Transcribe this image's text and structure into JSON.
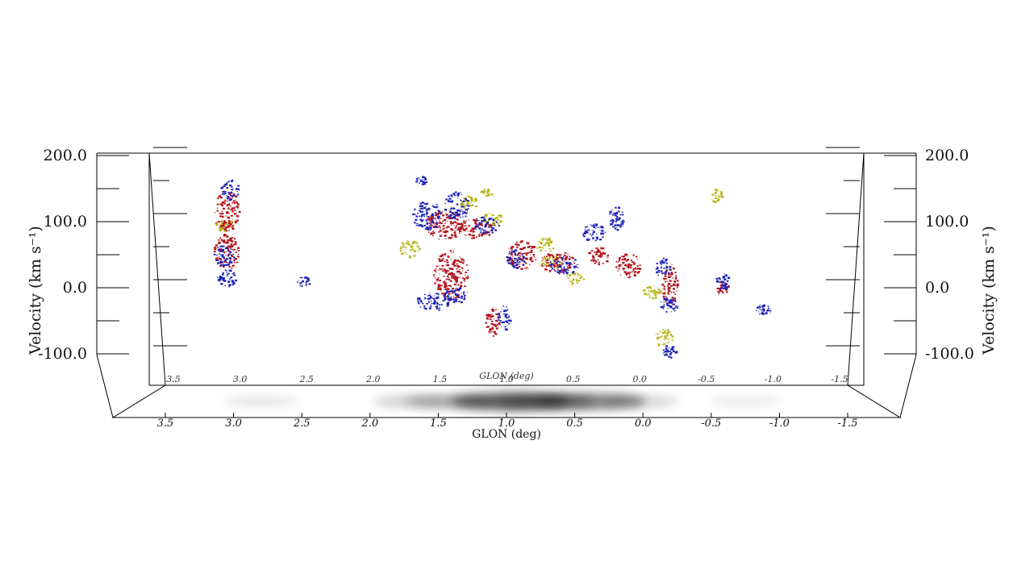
{
  "chart_data": {
    "type": "scatter",
    "title": "",
    "ylabel": "Velocity (km s⁻¹)",
    "xlabel_front": "GLON (deg)",
    "xlabel_back": "GLON (deg)",
    "ylim": [
      -150,
      200
    ],
    "xlim": [
      2.0,
      -2.0
    ],
    "velocity_ticks": [
      "200.0",
      "100.0",
      "0.0",
      "-100.0"
    ],
    "velocity_tick_values": [
      200,
      100,
      0,
      -100
    ],
    "glon_ticks_front": [
      "3.5",
      "3.0",
      "2.5",
      "2.0",
      "1.5",
      "1.0",
      "0.5",
      "0.0",
      "-0.5",
      "-1.0",
      "-1.5"
    ],
    "glon_ticks_back": [
      "3.5",
      "3.0",
      "2.5",
      "2.0",
      "1.5",
      "1.0",
      "0.5",
      "0.0",
      "-0.5",
      "-1.0",
      "-1.5"
    ],
    "colors": {
      "red": "#b3121a",
      "blue": "#1b23b8",
      "yellow": "#b8b417",
      "projection": "#222222"
    },
    "clumps": [
      {
        "glon": 3.2,
        "v": 118,
        "dglon": 0.08,
        "dv": 28,
        "series": "red"
      },
      {
        "glon": 3.2,
        "v": 55,
        "dglon": 0.08,
        "dv": 24,
        "series": "red"
      },
      {
        "glon": 3.17,
        "v": 150,
        "dglon": 0.05,
        "dv": 12,
        "series": "blue"
      },
      {
        "glon": 3.22,
        "v": 50,
        "dglon": 0.06,
        "dv": 12,
        "series": "blue"
      },
      {
        "glon": 3.2,
        "v": 15,
        "dglon": 0.05,
        "dv": 10,
        "series": "blue"
      },
      {
        "glon": 3.22,
        "v": 95,
        "dglon": 0.06,
        "dv": 6,
        "series": "yellow"
      },
      {
        "glon": 2.55,
        "v": 10,
        "dglon": 0.03,
        "dv": 4,
        "series": "blue"
      },
      {
        "glon": 1.5,
        "v": 110,
        "dglon": 0.1,
        "dv": 18,
        "series": "blue"
      },
      {
        "glon": 1.25,
        "v": 125,
        "dglon": 0.08,
        "dv": 18,
        "series": "blue"
      },
      {
        "glon": 1.35,
        "v": 95,
        "dglon": 0.15,
        "dv": 18,
        "series": "red"
      },
      {
        "glon": 1.1,
        "v": 90,
        "dglon": 0.12,
        "dv": 12,
        "series": "red"
      },
      {
        "glon": 1.0,
        "v": 95,
        "dglon": 0.08,
        "dv": 10,
        "series": "blue"
      },
      {
        "glon": 0.95,
        "v": 105,
        "dglon": 0.06,
        "dv": 6,
        "series": "yellow"
      },
      {
        "glon": 1.15,
        "v": 130,
        "dglon": 0.05,
        "dv": 6,
        "series": "yellow"
      },
      {
        "glon": 1.65,
        "v": 60,
        "dglon": 0.06,
        "dv": 10,
        "series": "yellow"
      },
      {
        "glon": 1.3,
        "v": 20,
        "dglon": 0.12,
        "dv": 35,
        "series": "red"
      },
      {
        "glon": 1.45,
        "v": -20,
        "dglon": 0.12,
        "dv": 10,
        "series": "blue"
      },
      {
        "glon": 1.25,
        "v": -10,
        "dglon": 0.08,
        "dv": 8,
        "series": "blue"
      },
      {
        "glon": 0.7,
        "v": 50,
        "dglon": 0.1,
        "dv": 18,
        "series": "red"
      },
      {
        "glon": 0.75,
        "v": 45,
        "dglon": 0.06,
        "dv": 10,
        "series": "blue"
      },
      {
        "glon": 0.4,
        "v": 40,
        "dglon": 0.12,
        "dv": 12,
        "series": "red"
      },
      {
        "glon": 0.35,
        "v": 35,
        "dglon": 0.1,
        "dv": 10,
        "series": "blue"
      },
      {
        "glon": 0.1,
        "v": 85,
        "dglon": 0.08,
        "dv": 10,
        "series": "blue"
      },
      {
        "glon": 0.05,
        "v": 50,
        "dglon": 0.06,
        "dv": 10,
        "series": "red"
      },
      {
        "glon": -0.1,
        "v": 105,
        "dglon": 0.04,
        "dv": 16,
        "series": "blue"
      },
      {
        "glon": -0.2,
        "v": 35,
        "dglon": 0.08,
        "dv": 15,
        "series": "red"
      },
      {
        "glon": 0.25,
        "v": 15,
        "dglon": 0.05,
        "dv": 5,
        "series": "yellow"
      },
      {
        "glon": 0.45,
        "v": 40,
        "dglon": 0.06,
        "dv": 6,
        "series": "yellow"
      },
      {
        "glon": -0.55,
        "v": 5,
        "dglon": 0.04,
        "dv": 30,
        "series": "red"
      },
      {
        "glon": -0.55,
        "v": -25,
        "dglon": 0.05,
        "dv": 8,
        "series": "blue"
      },
      {
        "glon": -0.5,
        "v": 30,
        "dglon": 0.04,
        "dv": 12,
        "series": "blue"
      },
      {
        "glon": -0.4,
        "v": -5,
        "dglon": 0.05,
        "dv": 6,
        "series": "yellow"
      },
      {
        "glon": -0.5,
        "v": -75,
        "dglon": 0.05,
        "dv": 10,
        "series": "yellow"
      },
      {
        "glon": -0.55,
        "v": -95,
        "dglon": 0.03,
        "dv": 6,
        "series": "blue"
      },
      {
        "glon": -0.95,
        "v": 140,
        "dglon": 0.02,
        "dv": 8,
        "series": "yellow"
      },
      {
        "glon": -1.0,
        "v": 10,
        "dglon": 0.03,
        "dv": 10,
        "series": "blue"
      },
      {
        "glon": -1.0,
        "v": 0,
        "dglon": 0.02,
        "dv": 8,
        "series": "red"
      },
      {
        "glon": -1.35,
        "v": -33,
        "dglon": 0.04,
        "dv": 5,
        "series": "blue"
      },
      {
        "glon": 1.0,
        "v": 145,
        "dglon": 0.02,
        "dv": 3,
        "series": "yellow"
      },
      {
        "glon": 1.55,
        "v": 163,
        "dglon": 0.02,
        "dv": 3,
        "series": "blue"
      },
      {
        "glon": 0.85,
        "v": -45,
        "dglon": 0.03,
        "dv": 15,
        "series": "blue"
      },
      {
        "glon": 0.95,
        "v": -50,
        "dglon": 0.03,
        "dv": 20,
        "series": "red"
      },
      {
        "glon": 0.5,
        "v": 65,
        "dglon": 0.05,
        "dv": 8,
        "series": "yellow"
      }
    ],
    "projection": [
      {
        "glon": 0.8,
        "intensity": 0.95
      },
      {
        "glon": 0.5,
        "intensity": 0.6
      },
      {
        "glon": 0.1,
        "intensity": 0.75
      },
      {
        "glon": 1.3,
        "intensity": 0.4
      },
      {
        "glon": 1.6,
        "intensity": 0.3
      },
      {
        "glon": -0.3,
        "intensity": 0.25
      },
      {
        "glon": 2.9,
        "intensity": 0.15
      },
      {
        "glon": -1.2,
        "intensity": 0.12
      }
    ]
  }
}
